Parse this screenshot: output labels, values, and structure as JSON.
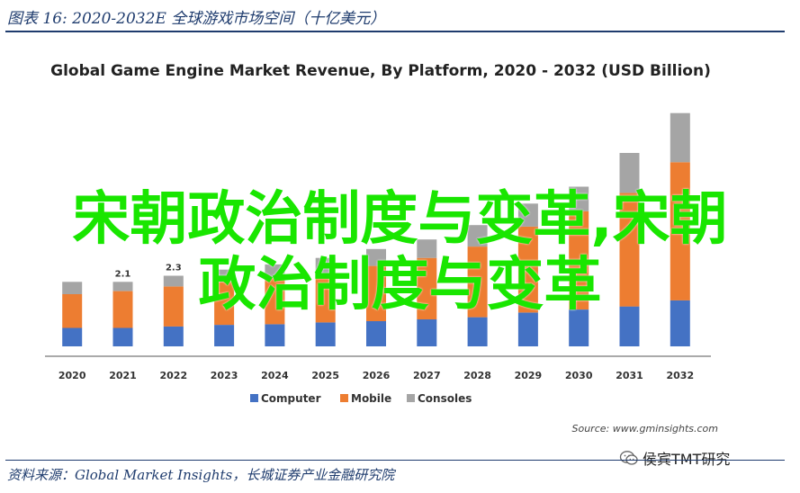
{
  "figure": {
    "caption": "图表 16:  2020-2032E 全球游戏市场空间（十亿美元）",
    "source": "资料来源：Global Market Insights，长城证券产业金融研究院"
  },
  "overlay": {
    "line1": "宋朝政治制度与变革,宋朝",
    "line2": "政治制度与变革"
  },
  "watermark": {
    "text": "侯宾TMT研究",
    "icon": "wechat-icon"
  },
  "colors": {
    "computer": "#4472c4",
    "mobile": "#ed7d31",
    "consoles": "#a5a5a5",
    "overlay": "#19e600",
    "caption": "#1f3c6e"
  },
  "chart_data": {
    "type": "bar",
    "stacked": true,
    "title": "Global Game Engine Market Revenue, By Platform, 2020 - 2032 (USD Billion)",
    "source": "Source: www.gminsights.com",
    "categories": [
      "2020",
      "2021",
      "2022",
      "2023",
      "2024",
      "2025",
      "2026",
      "2027",
      "2028",
      "2029",
      "2030",
      "2031",
      "2032"
    ],
    "series": [
      {
        "name": "Computer",
        "values": [
          0.6,
          0.6,
          0.65,
          0.7,
          0.72,
          0.78,
          0.82,
          0.88,
          0.95,
          1.1,
          1.2,
          1.3,
          1.5
        ]
      },
      {
        "name": "Mobile",
        "values": [
          1.1,
          1.2,
          1.3,
          1.4,
          1.5,
          1.6,
          1.8,
          2.0,
          2.3,
          2.8,
          3.2,
          3.7,
          4.5
        ]
      },
      {
        "name": "Consoles",
        "values": [
          0.4,
          0.3,
          0.35,
          0.4,
          0.45,
          0.5,
          0.55,
          0.6,
          0.7,
          0.75,
          0.8,
          1.3,
          1.6
        ]
      }
    ],
    "data_labels": {
      "2021": "2.1",
      "2022": "2.3"
    },
    "ylim": [
      0,
      8
    ],
    "grid": false,
    "legend": "bottom"
  }
}
